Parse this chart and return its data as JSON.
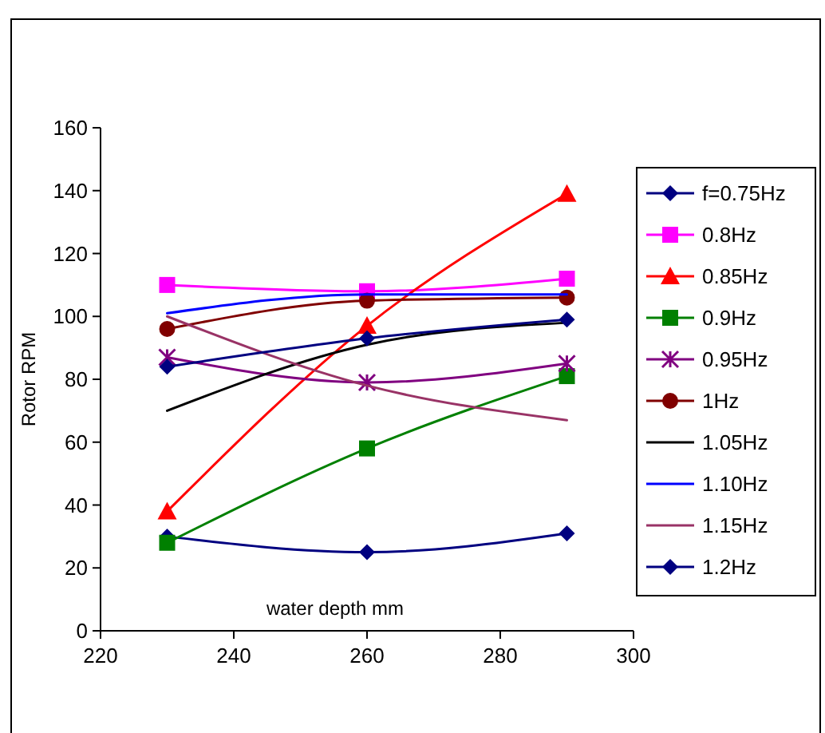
{
  "chart_data": {
    "type": "line",
    "xlabel": "water depth mm",
    "ylabel": "Rotor RPM",
    "x": [
      230,
      260,
      290
    ],
    "xlim": [
      220,
      300
    ],
    "xticks": [
      220,
      240,
      260,
      280,
      300
    ],
    "ylim": [
      0,
      160
    ],
    "yticks": [
      0,
      20,
      40,
      60,
      80,
      100,
      120,
      140,
      160
    ],
    "grid": false,
    "legend": "right",
    "series": [
      {
        "name": "f=0.75Hz",
        "color": "#000080",
        "marker": "diamond",
        "values": [
          30,
          25,
          31
        ]
      },
      {
        "name": "0.8Hz",
        "color": "#ff00ff",
        "marker": "square",
        "values": [
          110,
          108,
          112
        ]
      },
      {
        "name": "0.85Hz",
        "color": "#ff0000",
        "marker": "triangle",
        "values": [
          38,
          97,
          139
        ]
      },
      {
        "name": "0.9Hz",
        "color": "#008000",
        "marker": "square",
        "values": [
          28,
          58,
          81
        ]
      },
      {
        "name": "0.95Hz",
        "color": "#800080",
        "marker": "cross",
        "values": [
          87,
          79,
          85
        ]
      },
      {
        "name": "1Hz",
        "color": "#800000",
        "marker": "circle",
        "values": [
          96,
          105,
          106
        ]
      },
      {
        "name": "1.05Hz",
        "color": "#000000",
        "marker": "none",
        "values": [
          70,
          91,
          98
        ]
      },
      {
        "name": "1.10Hz",
        "color": "#0000ff",
        "marker": "none",
        "values": [
          101,
          107,
          107
        ]
      },
      {
        "name": "1.15Hz",
        "color": "#993366",
        "marker": "none",
        "values": [
          100,
          78,
          67
        ]
      },
      {
        "name": "1.2Hz",
        "color": "#000080",
        "marker": "diamond",
        "values": [
          84,
          93,
          99
        ]
      }
    ]
  }
}
